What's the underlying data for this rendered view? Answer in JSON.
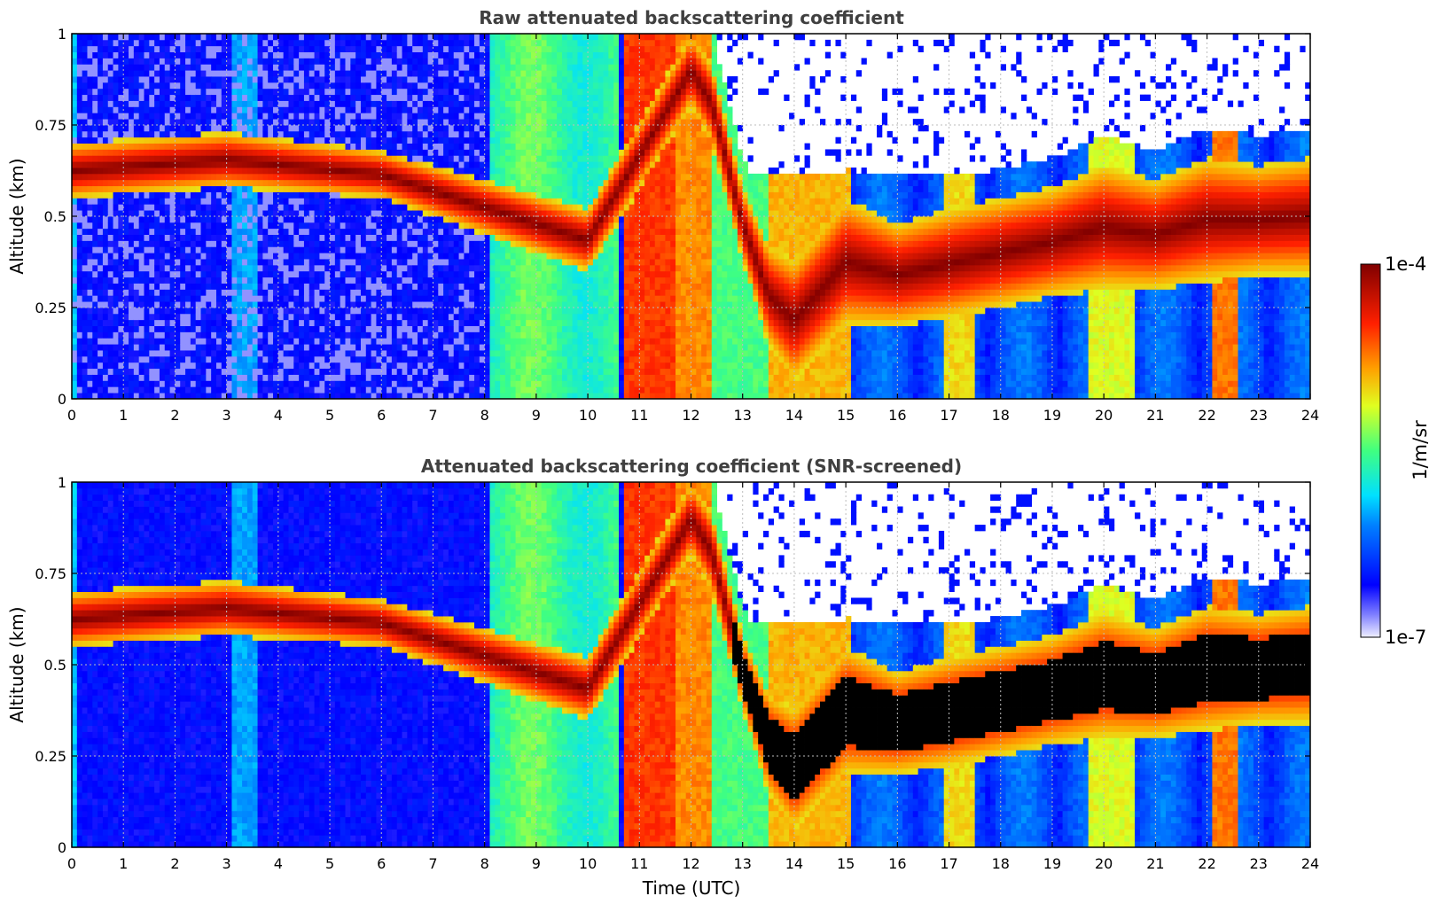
{
  "chart_data": [
    {
      "type": "heatmap",
      "title": "Raw attenuated backscattering coefficient",
      "xlabel": "",
      "ylabel": "Altitude (km)",
      "xlim": [
        0,
        24
      ],
      "ylim": [
        0,
        1
      ],
      "x_ticks": [
        "0",
        "1",
        "2",
        "3",
        "4",
        "5",
        "6",
        "7",
        "8",
        "9",
        "10",
        "11",
        "12",
        "13",
        "14",
        "15",
        "16",
        "17",
        "18",
        "19",
        "20",
        "21",
        "22",
        "23",
        "24"
      ],
      "y_ticks": [
        "0",
        "0.25",
        "0.5",
        "0.75",
        "1"
      ],
      "grid": true,
      "colormap": "jet",
      "color_scale": "log",
      "layers": [
        {
          "x": [
            0,
            3,
            6,
            8,
            10,
            12,
            12.4,
            13,
            13.5,
            14,
            15,
            16,
            17,
            18,
            19,
            20,
            21,
            22,
            23,
            24
          ],
          "top": [
            0.7,
            0.73,
            0.68,
            0.6,
            0.52,
            1.0,
            0.92,
            0.58,
            0.42,
            0.38,
            0.55,
            0.48,
            0.52,
            0.55,
            0.58,
            0.64,
            0.6,
            0.66,
            0.64,
            0.66
          ],
          "base": [
            0.55,
            0.58,
            0.55,
            0.45,
            0.35,
            0.8,
            0.7,
            0.38,
            0.15,
            0.05,
            0.2,
            0.2,
            0.22,
            0.25,
            0.28,
            0.3,
            0.3,
            0.32,
            0.34,
            0.34
          ],
          "level": "high"
        }
      ]
    },
    {
      "type": "heatmap",
      "title": "Attenuated backscattering coefficient (SNR-screened)",
      "xlabel": "Time (UTC)",
      "ylabel": "Altitude (km)",
      "xlim": [
        0,
        24
      ],
      "ylim": [
        0,
        1
      ],
      "x_ticks": [
        "0",
        "1",
        "2",
        "3",
        "4",
        "5",
        "6",
        "7",
        "8",
        "9",
        "10",
        "11",
        "12",
        "13",
        "14",
        "15",
        "16",
        "17",
        "18",
        "19",
        "20",
        "21",
        "22",
        "23",
        "24"
      ],
      "y_ticks": [
        "0",
        "0.25",
        "0.5",
        "0.75",
        "1"
      ],
      "grid": true,
      "colormap": "jet",
      "color_scale": "log"
    }
  ],
  "colorbar": {
    "max_label": "1e-4",
    "min_label": "1e-7",
    "unit_label": "1/m/sr",
    "range": [
      1e-07,
      0.0001
    ]
  }
}
